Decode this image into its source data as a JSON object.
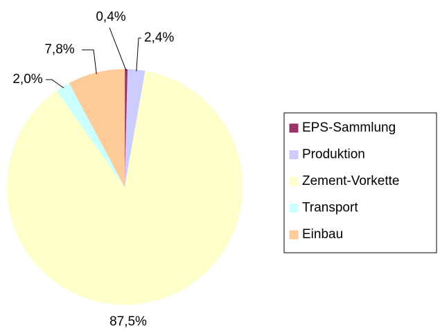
{
  "chart_data": {
    "type": "pie",
    "categories": [
      "EPS-Sammlung",
      "Produktion",
      "Zement-Vorkette",
      "Transport",
      "Einbau"
    ],
    "values": [
      0.4,
      2.4,
      87.5,
      2.0,
      7.8
    ],
    "value_labels": [
      "0,4%",
      "2,4%",
      "87,5%",
      "2,0%",
      "7,8%"
    ],
    "colors": [
      "#993366",
      "#ccccff",
      "#ffffcc",
      "#ccffff",
      "#ffcc99"
    ],
    "legend": "right"
  }
}
